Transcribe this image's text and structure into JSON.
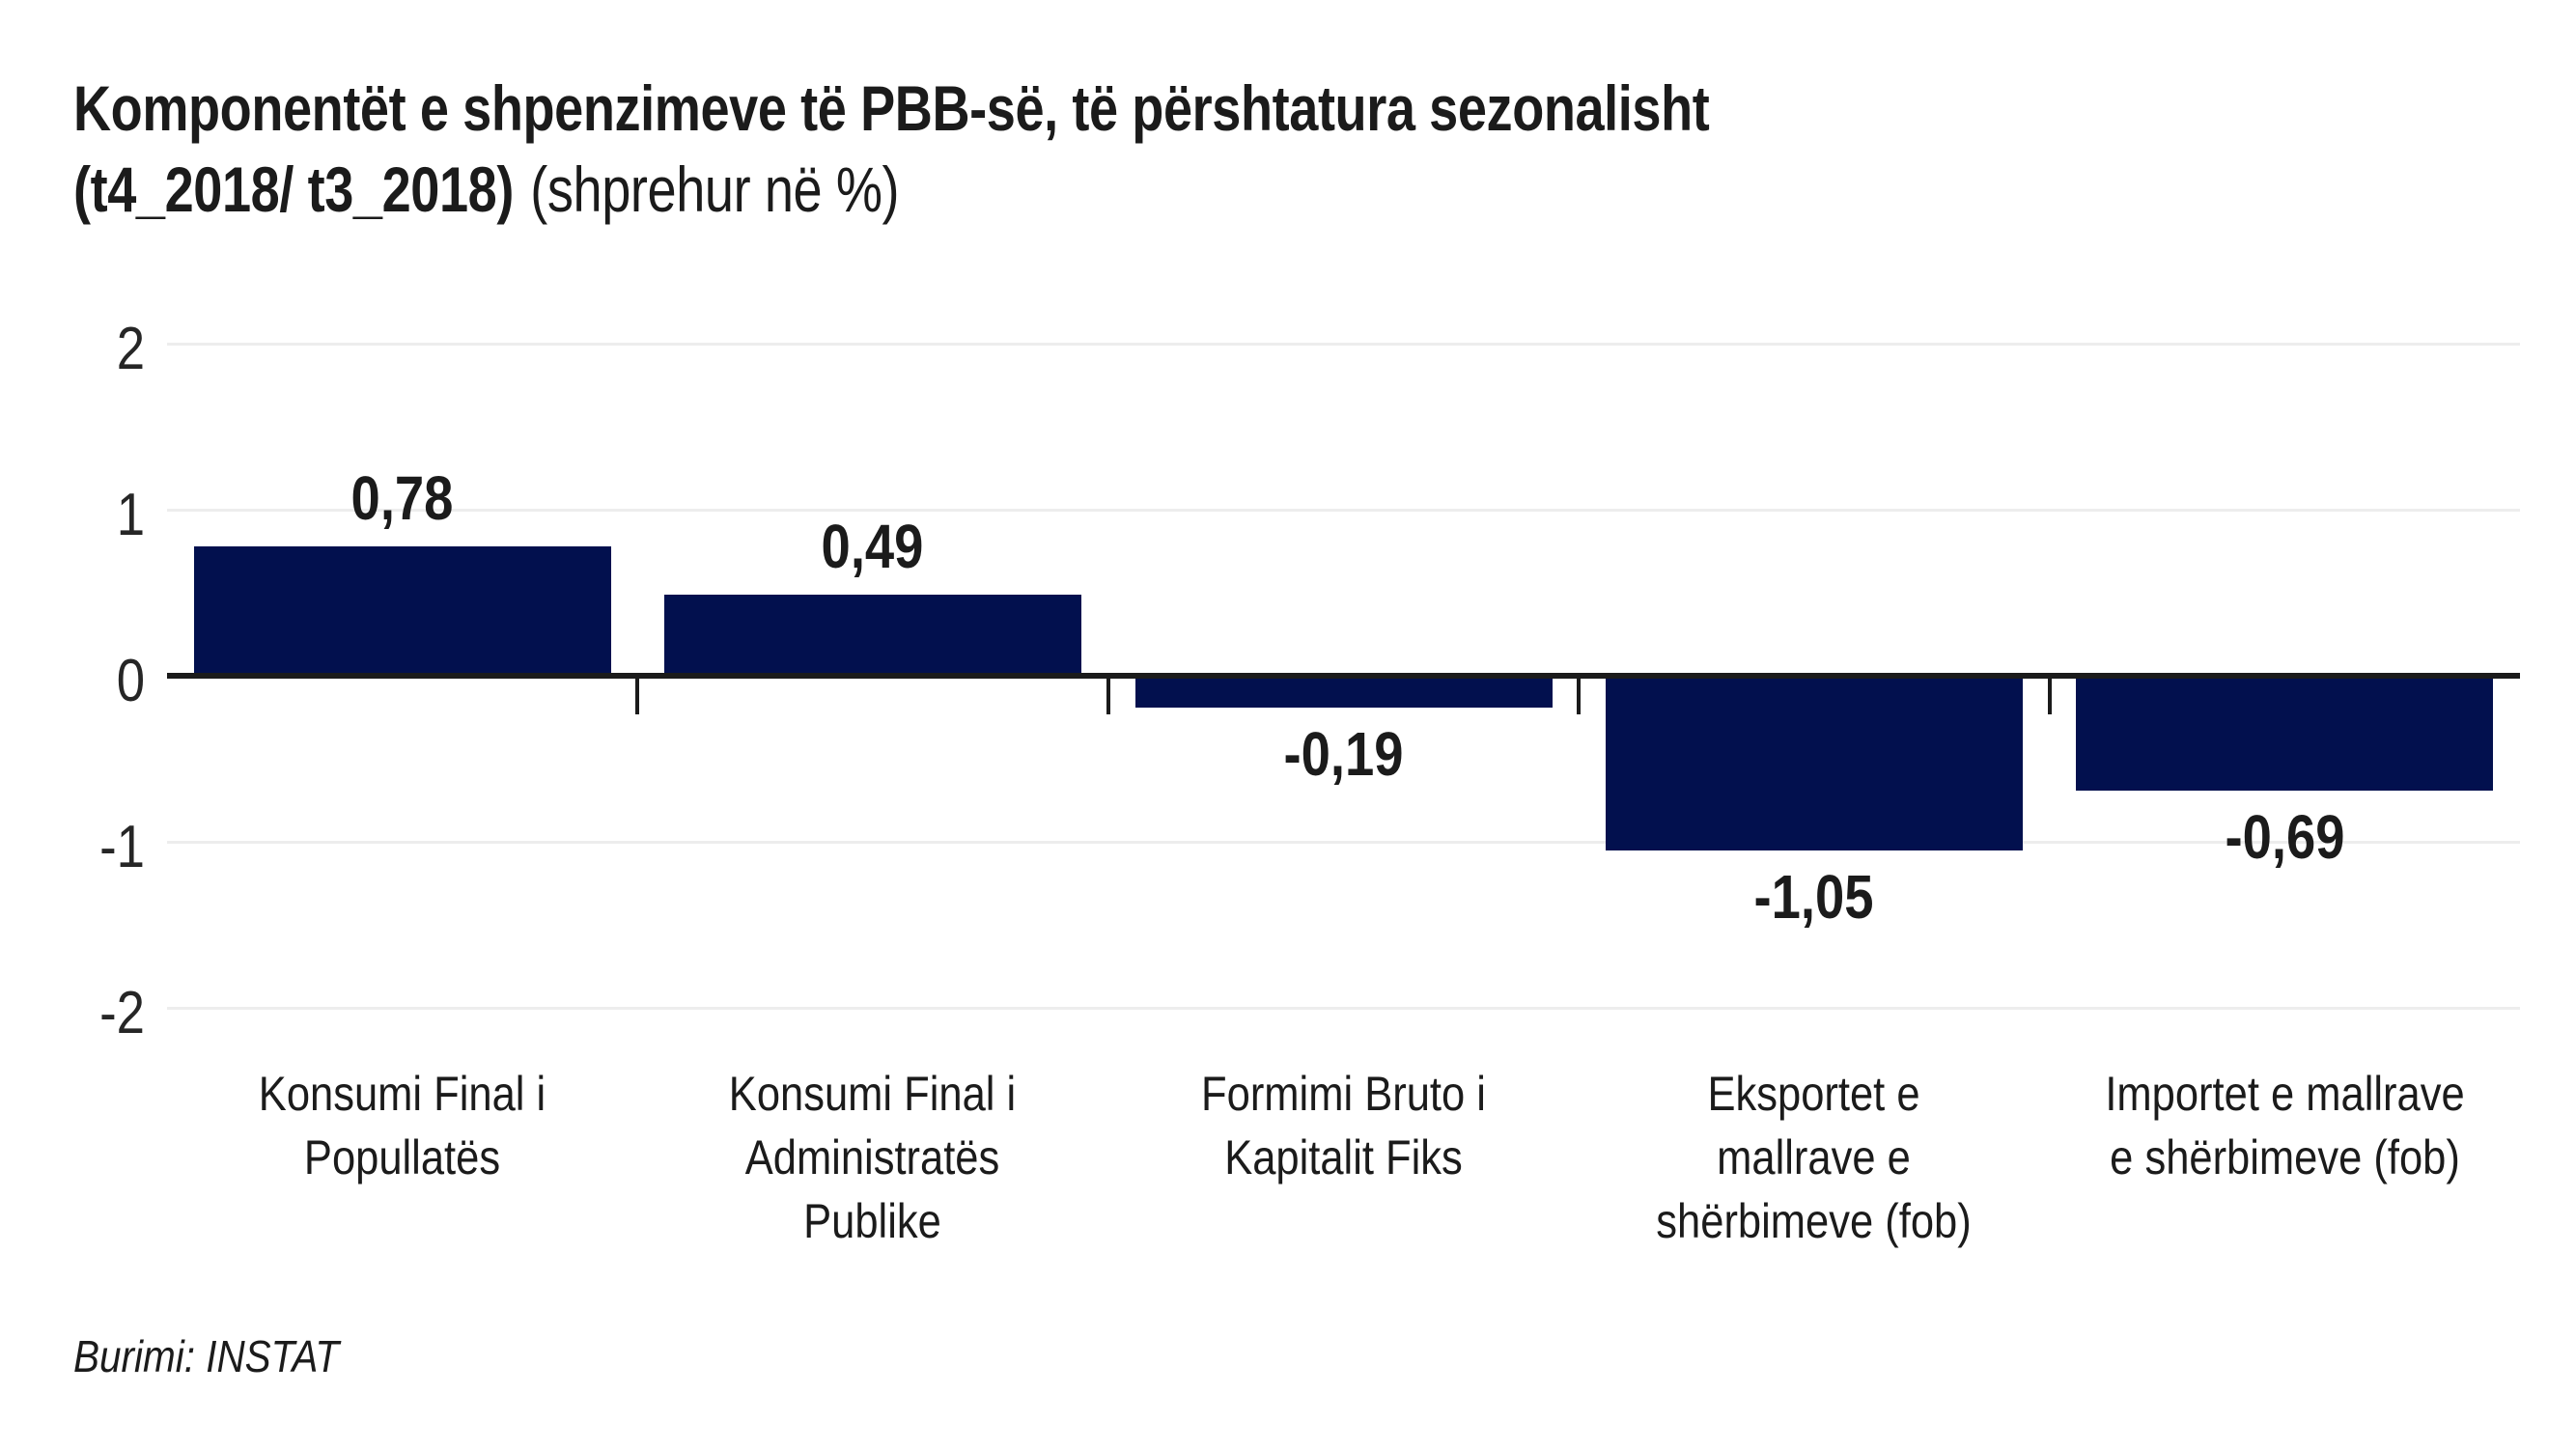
{
  "header": {
    "title_line1": "Komponentët e shpenzimeve të PBB-së, të përshtatura sezonalisht",
    "title_line2_bold": "(t4_2018/ t3_2018)",
    "title_line2_note": "(shprehur në %)"
  },
  "footer": {
    "source": "Burimi: INSTAT"
  },
  "colors": {
    "bar": "#02104e",
    "axis": "#1b1b1b",
    "gridline": "#ededed",
    "text": "#1b1b1b"
  },
  "chart_data": {
    "type": "bar",
    "title": "Komponentët e shpenzimeve të PBB-së, të përshtatura sezonalisht (t4_2018/ t3_2018) (shprehur në %)",
    "categories": [
      "Konsumi Final i Popullatës",
      "Konsumi Final i Administratës Publike",
      "Formimi Bruto i Kapitalit Fiks",
      "Eksportet e mallrave e shërbimeve (fob)",
      "Importet e mallrave e shërbimeve (fob)"
    ],
    "category_lines": [
      [
        "Konsumi Final i",
        "Popullatës"
      ],
      [
        "Konsumi Final i",
        "Administratës",
        "Publike"
      ],
      [
        "Formimi Bruto i",
        "Kapitalit Fiks"
      ],
      [
        "Eksportet e",
        "mallrave e",
        "shërbimeve (fob)"
      ],
      [
        "Importet e mallrave",
        "e shërbimeve (fob)"
      ]
    ],
    "values": [
      0.78,
      0.49,
      -0.19,
      -1.05,
      -0.69
    ],
    "value_labels": [
      "0,78",
      "0,49",
      "-0,19",
      "-1,05",
      "-0,69"
    ],
    "xlabel": "",
    "ylabel": "",
    "ylim": [
      -2,
      2
    ],
    "yticks": [
      2,
      1,
      0,
      -1,
      -2
    ],
    "ytick_labels": [
      "2",
      "1",
      "0",
      "-1",
      "-2"
    ],
    "grid": "horizontal",
    "legend": "none",
    "bar_color": "#02104e",
    "source": "Burimi: INSTAT"
  }
}
